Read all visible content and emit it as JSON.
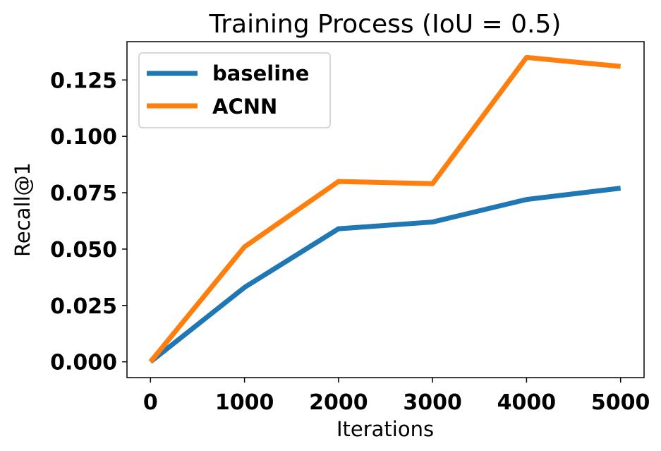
{
  "chart_data": {
    "type": "line",
    "title": "Training Process (IoU = 0.5)",
    "xlabel": "Iterations",
    "ylabel": "Recall@1",
    "x": [
      0,
      1000,
      2000,
      3000,
      4000,
      5000
    ],
    "xticks": [
      "0",
      "1000",
      "2000",
      "3000",
      "4000",
      "5000"
    ],
    "yticks": [
      "0.000",
      "0.025",
      "0.050",
      "0.075",
      "0.100",
      "0.125"
    ],
    "xlim": [
      -250,
      5250
    ],
    "ylim": [
      -0.007,
      0.142
    ],
    "grid": false,
    "legend_position": "top-left",
    "series": [
      {
        "name": "baseline",
        "color": "#1f77b4",
        "values": [
          0.0,
          0.033,
          0.059,
          0.062,
          0.072,
          0.077
        ]
      },
      {
        "name": "ACNN",
        "color": "#ff7f0e",
        "values": [
          0.0,
          0.051,
          0.08,
          0.079,
          0.135,
          0.131
        ]
      }
    ]
  }
}
